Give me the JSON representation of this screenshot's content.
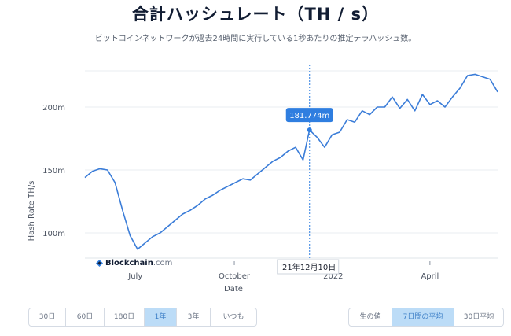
{
  "page": {
    "title": "合計ハッシュレート（TH / s）",
    "subtitle": "ビットコインネットワークが過去24時間に実行している1秒あたりの推定テラハッシュ数。"
  },
  "logo": {
    "brand": "Blockchain",
    "domain": ".com"
  },
  "tooltip": {
    "value": "181.774m",
    "date": "'21年12月10日"
  },
  "range_buttons": [
    {
      "label": "30日",
      "active": false
    },
    {
      "label": "60日",
      "active": false
    },
    {
      "label": "180日",
      "active": false
    },
    {
      "label": "1年",
      "active": true
    },
    {
      "label": "3年",
      "active": false
    },
    {
      "label": "いつも",
      "active": false
    }
  ],
  "avg_buttons": [
    {
      "label": "生の値",
      "active": false
    },
    {
      "label": "7日間の平均",
      "active": true
    },
    {
      "label": "30日平均",
      "active": false
    }
  ],
  "colors": {
    "line": "#3b7dd8",
    "grid": "#e8ecf1",
    "tooltip_bg": "#2f7ee0",
    "active_button": "#bcdcf7"
  },
  "chart_data": {
    "type": "line",
    "title": "合計ハッシュレート（TH / s）",
    "xlabel": "Date",
    "ylabel": "Hash Rate TH/s",
    "x_ticks": [
      "July",
      "October",
      "2022",
      "April"
    ],
    "y_ticks": [
      "100m",
      "150m",
      "200m"
    ],
    "ylim": [
      80,
      235
    ],
    "grid": true,
    "x": [
      "2021-05-15",
      "2021-05-22",
      "2021-05-29",
      "2021-06-05",
      "2021-06-12",
      "2021-06-19",
      "2021-06-26",
      "2021-07-03",
      "2021-07-10",
      "2021-07-17",
      "2021-07-24",
      "2021-07-31",
      "2021-08-07",
      "2021-08-14",
      "2021-08-21",
      "2021-08-28",
      "2021-09-04",
      "2021-09-11",
      "2021-09-18",
      "2021-09-25",
      "2021-10-02",
      "2021-10-09",
      "2021-10-16",
      "2021-10-23",
      "2021-10-30",
      "2021-11-06",
      "2021-11-13",
      "2021-11-20",
      "2021-11-27",
      "2021-12-04",
      "2021-12-10",
      "2021-12-17",
      "2021-12-24",
      "2021-12-31",
      "2022-01-07",
      "2022-01-14",
      "2022-01-21",
      "2022-01-28",
      "2022-02-04",
      "2022-02-11",
      "2022-02-18",
      "2022-02-25",
      "2022-03-04",
      "2022-03-11",
      "2022-03-18",
      "2022-03-25",
      "2022-04-01",
      "2022-04-08",
      "2022-04-15",
      "2022-04-22",
      "2022-04-29",
      "2022-05-06",
      "2022-05-13",
      "2022-05-20",
      "2022-05-27",
      "2022-06-03"
    ],
    "values": [
      144,
      149,
      151,
      150,
      140,
      118,
      98,
      87,
      92,
      97,
      100,
      105,
      110,
      115,
      118,
      122,
      127,
      130,
      134,
      137,
      140,
      143,
      142,
      147,
      152,
      157,
      160,
      165,
      168,
      158,
      181.774,
      176,
      168,
      178,
      180,
      190,
      188,
      197,
      194,
      200,
      200,
      208,
      199,
      206,
      197,
      210,
      202,
      205,
      200,
      208,
      215,
      225,
      226,
      224,
      222,
      212
    ]
  }
}
